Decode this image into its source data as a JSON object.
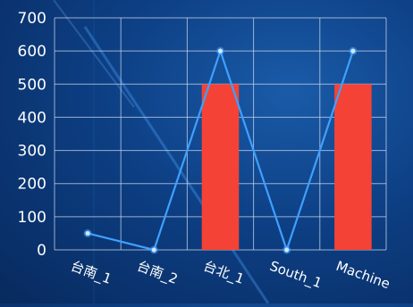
{
  "chart_data": {
    "type": "bar",
    "categories": [
      "台南_1",
      "台南_2",
      "台北_1",
      "South_1",
      "Machine"
    ],
    "series": [
      {
        "type": "bar",
        "values": [
          0,
          0,
          500,
          0,
          500
        ]
      },
      {
        "type": "line",
        "values": [
          50,
          0,
          600,
          0,
          600
        ]
      }
    ],
    "y_ticks": [
      0,
      100,
      200,
      300,
      400,
      500,
      600,
      700
    ],
    "ylim": [
      0,
      700
    ],
    "grid": true,
    "legend": "none",
    "colors": {
      "bar": "#f44336",
      "line": "#3fa0ff",
      "point": "#cfe8ff",
      "grid": "#c8d6ea",
      "text": "#ffffff"
    }
  }
}
